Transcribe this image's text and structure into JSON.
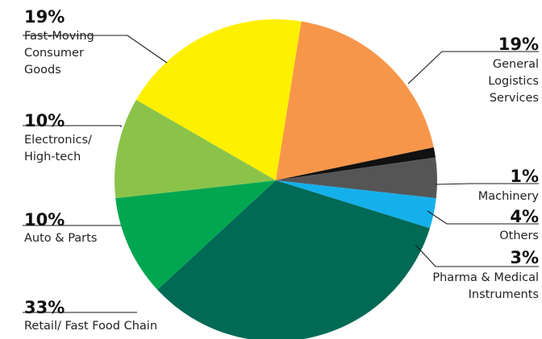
{
  "chart_data": {
    "type": "pie",
    "title": "",
    "slices": [
      {
        "key": "fmcg",
        "pct_label": "19%",
        "value": 19,
        "label_lines": [
          "Fast-Moving",
          "Consumer",
          "Goods"
        ],
        "color": "#FFF000"
      },
      {
        "key": "logistics",
        "pct_label": "19%",
        "value": 19,
        "label_lines": [
          "General",
          "Logistics",
          "Services"
        ],
        "color": "#F7964A"
      },
      {
        "key": "machinery",
        "pct_label": "1%",
        "value": 1,
        "label_lines": [
          "Machinery"
        ],
        "color": "#111111"
      },
      {
        "key": "others",
        "pct_label": "4%",
        "value": 4,
        "label_lines": [
          "Others"
        ],
        "color": "#555555"
      },
      {
        "key": "pharma",
        "pct_label": "3%",
        "value": 3,
        "label_lines": [
          "Pharma & Medical",
          "Instruments"
        ],
        "color": "#14B0EC"
      },
      {
        "key": "retail",
        "pct_label": "33%",
        "value": 33,
        "label_lines": [
          "Retail/ Fast Food Chain"
        ],
        "color": "#006A55"
      },
      {
        "key": "auto",
        "pct_label": "10%",
        "value": 10,
        "label_lines": [
          "Auto & Parts"
        ],
        "color": "#00A650"
      },
      {
        "key": "electronics",
        "pct_label": "10%",
        "value": 10,
        "label_lines": [
          "Electronics/",
          "High-tech"
        ],
        "color": "#8BC34A"
      }
    ]
  }
}
